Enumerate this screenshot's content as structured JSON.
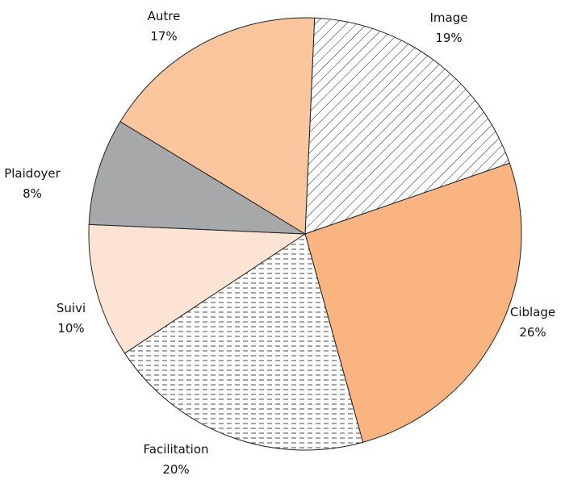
{
  "chart_data": {
    "type": "pie",
    "categories": [
      "Image",
      "Ciblage",
      "Facilitation",
      "Suivi",
      "Plaidoyer",
      "Autre"
    ],
    "values": [
      19,
      26,
      20,
      10,
      8,
      17
    ],
    "value_labels": [
      "19%",
      "26%",
      "20%",
      "10%",
      "8%",
      "17%"
    ],
    "colors": [
      "#ffffff",
      "#f9b482",
      "#ffffff",
      "#fde3d3",
      "#a7a8aa",
      "#fbc59e"
    ],
    "patterns": [
      "diagonal",
      null,
      "dashed",
      null,
      null,
      null
    ]
  }
}
